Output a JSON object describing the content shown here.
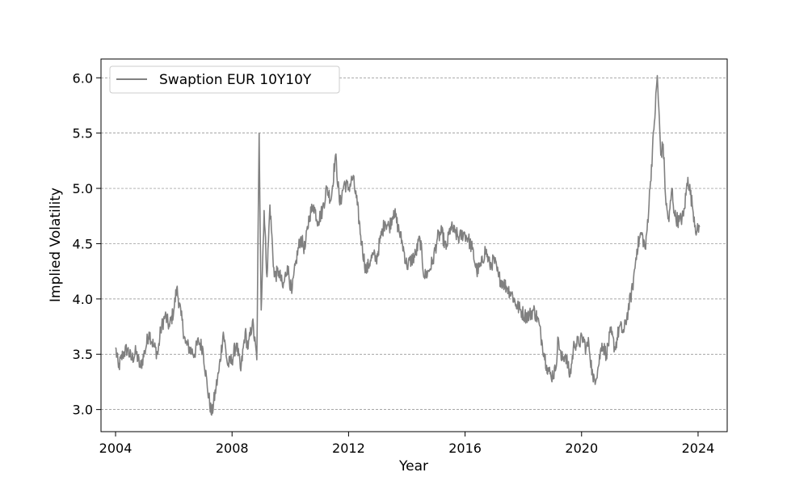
{
  "chart_data": {
    "type": "line",
    "title": "",
    "xlabel": "Year",
    "ylabel": "Implied Volatility",
    "xlim": [
      2003.5,
      2025.0
    ],
    "ylim": [
      2.8,
      6.17
    ],
    "x_ticks": [
      2004,
      2008,
      2012,
      2016,
      2020,
      2024
    ],
    "x_tick_labels": [
      "2004",
      "2008",
      "2012",
      "2016",
      "2020",
      "2024"
    ],
    "y_ticks": [
      3.0,
      3.5,
      4.0,
      4.5,
      5.0,
      5.5,
      6.0
    ],
    "y_tick_labels": [
      "3.0",
      "3.5",
      "4.0",
      "4.5",
      "5.0",
      "5.5",
      "6.0"
    ],
    "grid": "horizontal dashed",
    "legend_position": "top-left",
    "series": [
      {
        "name": "Swaption EUR 10Y10Y",
        "color": "#808080",
        "x": [
          2004.0,
          2004.1,
          2004.25,
          2004.4,
          2004.55,
          2004.7,
          2004.85,
          2005.0,
          2005.15,
          2005.3,
          2005.45,
          2005.55,
          2005.7,
          2005.85,
          2006.0,
          2006.1,
          2006.25,
          2006.4,
          2006.55,
          2006.7,
          2006.85,
          2007.0,
          2007.15,
          2007.3,
          2007.45,
          2007.55,
          2007.7,
          2007.85,
          2008.0,
          2008.15,
          2008.3,
          2008.45,
          2008.55,
          2008.7,
          2008.85,
          2008.93,
          2009.0,
          2009.1,
          2009.2,
          2009.3,
          2009.45,
          2009.6,
          2009.75,
          2009.9,
          2010.05,
          2010.2,
          2010.35,
          2010.5,
          2010.65,
          2010.8,
          2010.95,
          2011.1,
          2011.25,
          2011.4,
          2011.55,
          2011.7,
          2011.85,
          2012.0,
          2012.15,
          2012.3,
          2012.45,
          2012.6,
          2012.75,
          2012.85,
          2012.95,
          2013.1,
          2013.25,
          2013.4,
          2013.55,
          2013.7,
          2013.85,
          2014.0,
          2014.15,
          2014.3,
          2014.45,
          2014.6,
          2014.75,
          2014.9,
          2015.05,
          2015.2,
          2015.35,
          2015.5,
          2015.65,
          2015.8,
          2015.95,
          2016.1,
          2016.25,
          2016.4,
          2016.55,
          2016.7,
          2016.85,
          2017.0,
          2017.15,
          2017.3,
          2017.45,
          2017.6,
          2017.75,
          2017.9,
          2018.05,
          2018.2,
          2018.35,
          2018.5,
          2018.65,
          2018.8,
          2018.95,
          2019.1,
          2019.2,
          2019.3,
          2019.45,
          2019.6,
          2019.75,
          2019.9,
          2020.05,
          2020.15,
          2020.25,
          2020.4,
          2020.55,
          2020.7,
          2020.85,
          2021.0,
          2021.15,
          2021.3,
          2021.45,
          2021.6,
          2021.75,
          2021.9,
          2022.05,
          2022.2,
          2022.35,
          2022.5,
          2022.6,
          2022.72,
          2022.8,
          2022.9,
          2023.0,
          2023.1,
          2023.2,
          2023.35,
          2023.5,
          2023.65,
          2023.8,
          2023.95,
          2024.05
        ],
        "values": [
          3.56,
          3.38,
          3.5,
          3.55,
          3.45,
          3.52,
          3.38,
          3.52,
          3.7,
          3.58,
          3.5,
          3.72,
          3.85,
          3.75,
          3.9,
          4.1,
          3.85,
          3.6,
          3.55,
          3.5,
          3.62,
          3.55,
          3.2,
          2.95,
          3.2,
          3.35,
          3.7,
          3.4,
          3.45,
          3.6,
          3.35,
          3.7,
          3.55,
          3.8,
          3.45,
          5.5,
          3.9,
          4.8,
          4.2,
          4.85,
          4.2,
          4.25,
          4.1,
          4.3,
          4.05,
          4.35,
          4.55,
          4.45,
          4.75,
          4.85,
          4.7,
          4.8,
          5.0,
          4.9,
          5.3,
          4.85,
          5.05,
          5.0,
          5.1,
          4.85,
          4.5,
          4.25,
          4.35,
          4.4,
          4.35,
          4.55,
          4.7,
          4.65,
          4.8,
          4.65,
          4.5,
          4.3,
          4.35,
          4.4,
          4.55,
          4.2,
          4.25,
          4.35,
          4.55,
          4.6,
          4.45,
          4.65,
          4.6,
          4.55,
          4.6,
          4.55,
          4.45,
          4.25,
          4.3,
          4.45,
          4.3,
          4.35,
          4.2,
          4.15,
          4.1,
          4.05,
          3.95,
          3.9,
          3.85,
          3.85,
          3.9,
          3.82,
          3.6,
          3.4,
          3.3,
          3.35,
          3.65,
          3.45,
          3.5,
          3.3,
          3.6,
          3.6,
          3.65,
          3.55,
          3.6,
          3.25,
          3.35,
          3.6,
          3.5,
          3.7,
          3.55,
          3.75,
          3.7,
          3.9,
          4.1,
          4.45,
          4.6,
          4.45,
          5.0,
          5.6,
          6.02,
          5.3,
          5.4,
          4.85,
          4.7,
          5.0,
          4.75,
          4.7,
          4.75,
          5.1,
          4.85,
          4.6,
          4.65
        ]
      }
    ]
  }
}
